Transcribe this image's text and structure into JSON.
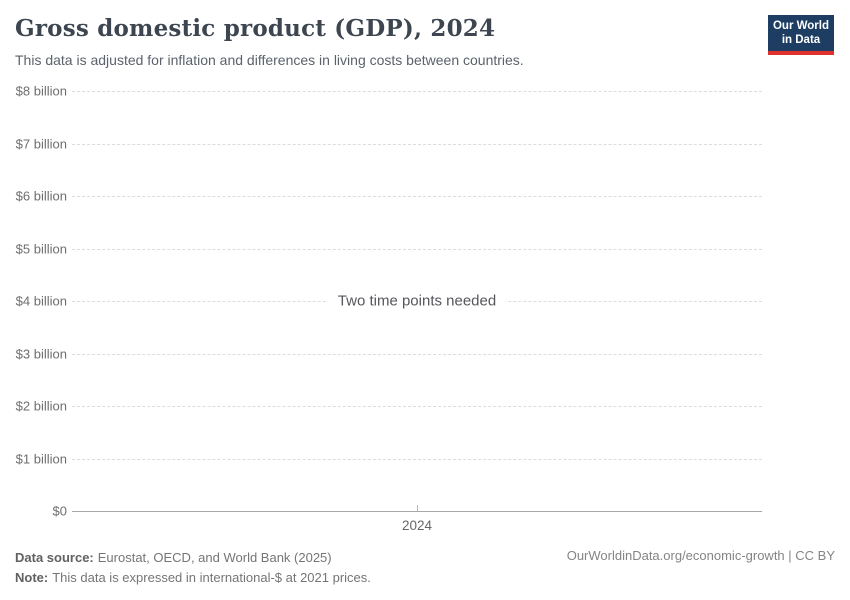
{
  "header": {
    "title": "Gross domestic product (GDP), 2024",
    "subtitle": "This data is adjusted for inflation and differences in living costs between countries.",
    "logo": {
      "line1": "Our World",
      "line2": "in Data",
      "bg_color": "#1d3d63",
      "accent_color": "#e0322d"
    }
  },
  "chart": {
    "empty_message": "Two time points needed",
    "y_axis_labels_top_to_bottom": [
      "$8 billion",
      "$7 billion",
      "$6 billion",
      "$5 billion",
      "$4 billion",
      "$3 billion",
      "$2 billion",
      "$1 billion"
    ],
    "y_zero_label": "$0",
    "x_tick_label": "2024",
    "gridline_color": "#dcdcdc",
    "axis_color": "#a8a8a8"
  },
  "chart_data": {
    "type": "line",
    "title": "Gross domestic product (GDP), 2024",
    "subtitle": "This data is adjusted for inflation and differences in living costs between countries.",
    "x": [
      "2024"
    ],
    "series": [],
    "annotations": [
      "Two time points needed"
    ],
    "ylabel": "",
    "y_tick_labels": [
      "$0",
      "$1 billion",
      "$2 billion",
      "$3 billion",
      "$4 billion",
      "$5 billion",
      "$6 billion",
      "$7 billion",
      "$8 billion"
    ],
    "ylim_billions": [
      0,
      8
    ],
    "grid": true,
    "legend_position": "none"
  },
  "footer": {
    "data_source_label": "Data source:",
    "data_source_text": "Eurostat, OECD, and World Bank (2025)",
    "note_label": "Note:",
    "note_text": "This data is expressed in international-$ at 2021 prices.",
    "link_text": "OurWorldinData.org/economic-growth | CC BY"
  }
}
